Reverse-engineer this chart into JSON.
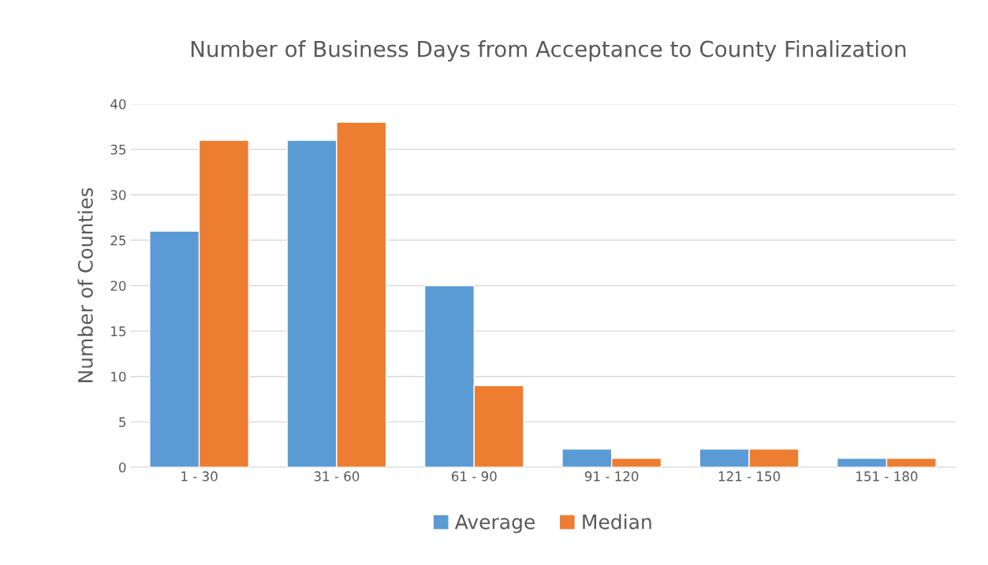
{
  "chart_data": {
    "type": "bar",
    "title": "Number of Business Days from Acceptance to County Finalization",
    "ylabel": "Number of Counties",
    "categories": [
      "1 - 30",
      "31 - 60",
      "61 - 90",
      "91 - 120",
      "121 - 150",
      "151 - 180"
    ],
    "series": [
      {
        "name": "Average",
        "color": "#5b9bd5",
        "values": [
          26,
          36,
          20,
          2,
          2,
          1
        ]
      },
      {
        "name": "Median",
        "color": "#ed7d31",
        "values": [
          36,
          38,
          9,
          1,
          2,
          1
        ]
      }
    ],
    "ylim": [
      0,
      40
    ],
    "yticks": [
      0,
      5,
      10,
      15,
      20,
      25,
      30,
      35,
      40
    ],
    "grid": "y",
    "legend": "bottom"
  }
}
